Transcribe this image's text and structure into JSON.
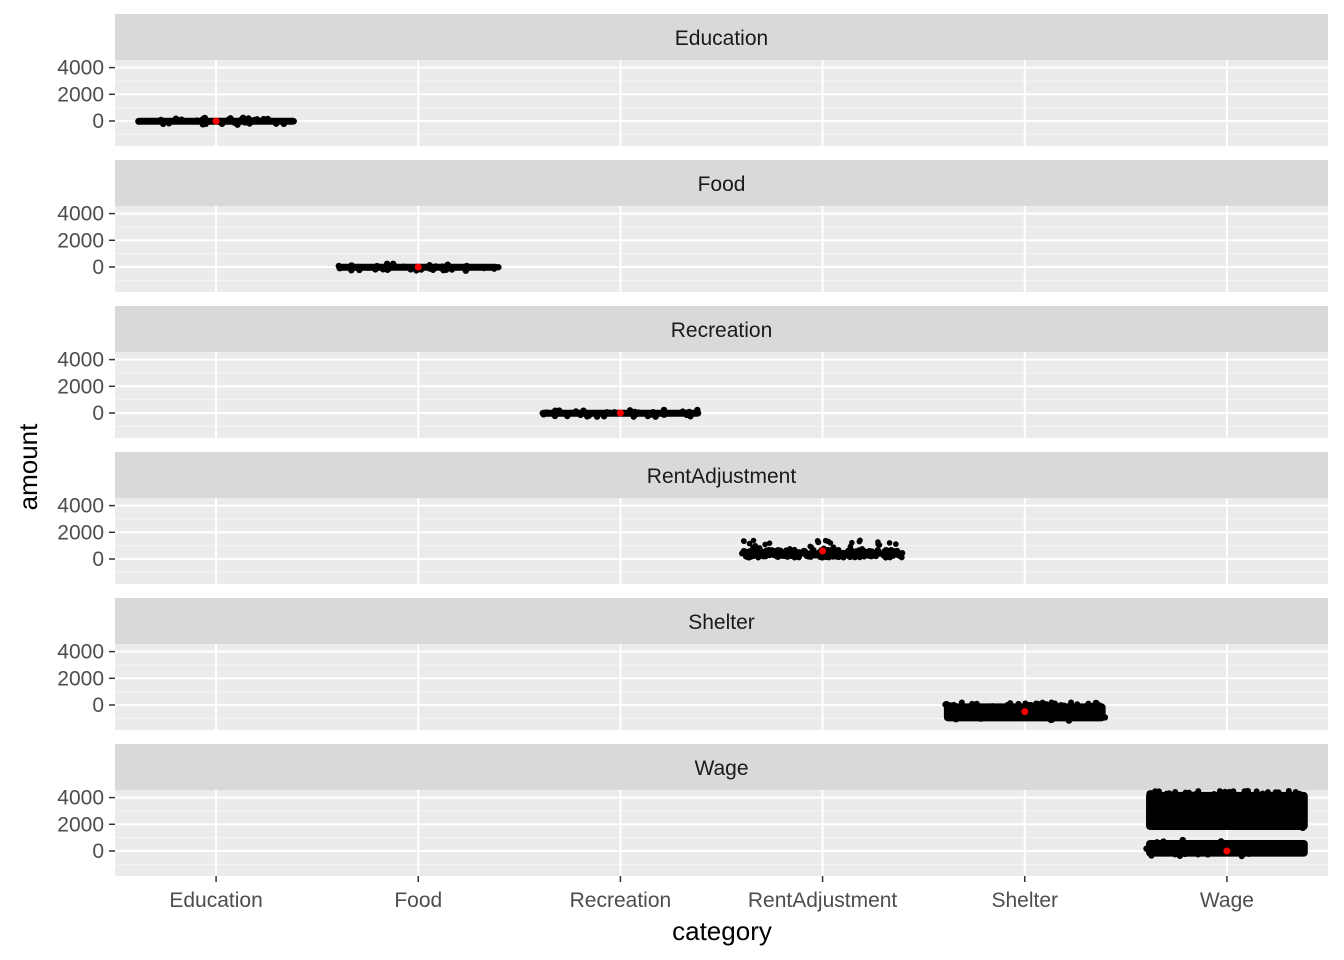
{
  "chart_data": {
    "type": "scatter",
    "description_note": "",
    "xlabel": "category",
    "ylabel": "amount",
    "categories": [
      "Education",
      "Food",
      "Recreation",
      "RentAdjustment",
      "Shelter",
      "Wage"
    ],
    "y_ticks": [
      0,
      2000,
      4000
    ],
    "y_tick_labels": [
      "0",
      "2000",
      "4000"
    ],
    "ylim": [
      -1000,
      5000
    ],
    "grid": true,
    "facets": [
      {
        "strip": "Education",
        "category": "Education",
        "mean": 0,
        "points_mode": "band",
        "bands": [
          {
            "y_min": -20,
            "y_max": 20
          }
        ]
      },
      {
        "strip": "Food",
        "category": "Food",
        "mean": 0,
        "points_mode": "band",
        "bands": [
          {
            "y_min": -20,
            "y_max": 20
          }
        ]
      },
      {
        "strip": "Recreation",
        "category": "Recreation",
        "mean": 0,
        "points_mode": "band",
        "bands": [
          {
            "y_min": -20,
            "y_max": 20
          }
        ]
      },
      {
        "strip": "RentAdjustment",
        "category": "RentAdjustment",
        "mean": 600,
        "points_mode": "scatter",
        "bands": [
          {
            "y_min": 100,
            "y_max": 1400
          }
        ]
      },
      {
        "strip": "Shelter",
        "category": "Shelter",
        "mean": -500,
        "points_mode": "band",
        "bands": [
          {
            "y_min": -1000,
            "y_max": -100
          }
        ]
      },
      {
        "strip": "Wage",
        "category": "Wage",
        "mean": 0,
        "points_mode": "band",
        "bands": [
          {
            "y_min": -200,
            "y_max": 600
          },
          {
            "y_min": 1800,
            "y_max": 4200
          }
        ]
      }
    ],
    "colors": {
      "panel_bg": "#ebebeb",
      "strip_bg": "#d9d9d9",
      "grid_major": "#ffffff",
      "grid_minor": "#f5f5f5",
      "points": "#000000",
      "mean_point": "#ff0000"
    }
  }
}
